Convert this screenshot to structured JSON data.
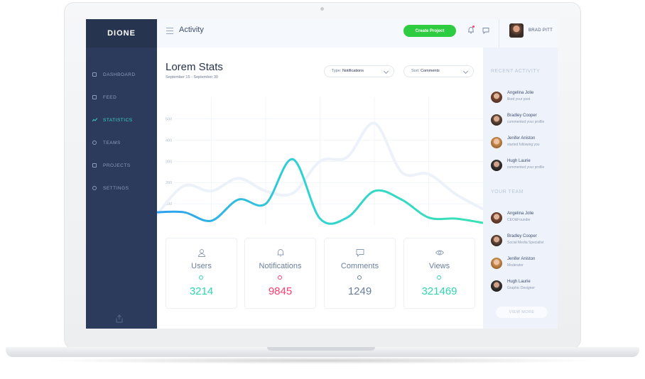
{
  "brand": {
    "logo": "DIONE"
  },
  "topbar": {
    "title": "Activity",
    "create_button": "Create Project",
    "user_name": "BRAD PITT"
  },
  "sidebar": {
    "items": [
      {
        "label": "DASHBOARD",
        "icon": "document-icon",
        "active": false
      },
      {
        "label": "FEED",
        "icon": "copy-icon",
        "active": false
      },
      {
        "label": "STATISTICS",
        "icon": "trend-icon",
        "active": true
      },
      {
        "label": "TEAMS",
        "icon": "user-icon",
        "active": false
      },
      {
        "label": "PROJECTS",
        "icon": "calendar-icon",
        "active": false
      },
      {
        "label": "SETTINGS",
        "icon": "gear-icon",
        "active": false
      }
    ]
  },
  "stats": {
    "title": "Lorem Stats",
    "subtitle": "September 15 - September 30",
    "type_filter": {
      "label": "Type:",
      "value": "Notifications"
    },
    "sort_filter": {
      "label": "Sort:",
      "value": "Comments"
    }
  },
  "chart_data": {
    "type": "line",
    "y_ticks": [
      "500",
      "400",
      "300",
      "200",
      "100"
    ],
    "ylim": [
      0,
      500
    ],
    "grid": true,
    "x": [
      0,
      1,
      2,
      3,
      4,
      5,
      6,
      7,
      8,
      9,
      10,
      11,
      12
    ],
    "series": [
      {
        "values": [
          50,
          185,
          160,
          220,
          160,
          150,
          300,
          320,
          480,
          250,
          240,
          145,
          75
        ],
        "color": "#edf2fa"
      },
      {
        "values": [
          60,
          60,
          20,
          120,
          100,
          310,
          30,
          35,
          160,
          120,
          35,
          30,
          10
        ],
        "color": "#3ad6c4"
      }
    ]
  },
  "cards": [
    {
      "label": "Users",
      "value": "3214",
      "icon": "user-icon",
      "color": "#2fd6b2"
    },
    {
      "label": "Notifications",
      "value": "9845",
      "icon": "bell-icon",
      "color": "#ff3d6e"
    },
    {
      "label": "Comments",
      "value": "1249",
      "icon": "chat-icon",
      "color": "#6a7e9e"
    },
    {
      "label": "Views",
      "value": "321469",
      "icon": "eye-icon",
      "color": "#2fd6b2"
    }
  ],
  "recent_activity": {
    "title": "RECENT ACTIVITY",
    "items": [
      {
        "name": "Angelina Jolie",
        "desc": "liked your post"
      },
      {
        "name": "Bradley Cooper",
        "desc": "commented your profile"
      },
      {
        "name": "Jenifer Aniston",
        "desc": "started following you"
      },
      {
        "name": "Hugh Laurie",
        "desc": "commented your profile"
      }
    ]
  },
  "team": {
    "title": "YOUR TEAM",
    "items": [
      {
        "name": "Angelina Jolie",
        "desc": "CEO&Founder"
      },
      {
        "name": "Bradley Cooper",
        "desc": "Social Media Specialist"
      },
      {
        "name": "Jenifer Aniston",
        "desc": "Moderator"
      },
      {
        "name": "Hugh Laurie",
        "desc": "Graphic Designer"
      }
    ],
    "view_more": "VIEW MORE"
  }
}
